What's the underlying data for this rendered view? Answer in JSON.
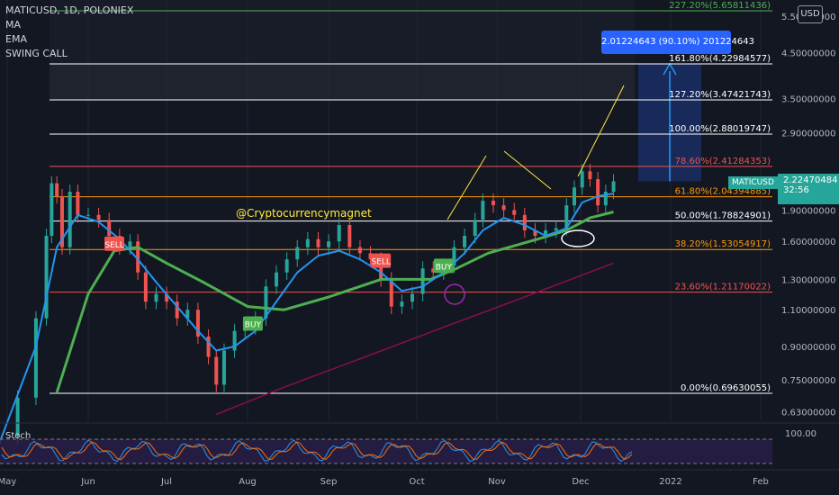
{
  "header": {
    "symbol_line": "MATICUSD, 1D, POLONIEX",
    "indicators": [
      "MA",
      "EMA",
      "SWING CALL"
    ]
  },
  "stoch_label": "Stoch",
  "currency_button": "USD",
  "watermark": "@Cryptocurrencymagnet",
  "measure_box": "2.01224643 (90.10%) 201224643",
  "price_tag": {
    "symbol": "MATICUSD",
    "price": "2.22470484",
    "countdown": "32:56"
  },
  "colors": {
    "background": "#131722",
    "up": "#26a69a",
    "down": "#ef5350",
    "blue_ema": "#2196f3",
    "measure": "#2962ff"
  },
  "chart_data": {
    "type": "line",
    "x_ticks": [
      "May",
      "Jun",
      "Jul",
      "Aug",
      "Sep",
      "Oct",
      "Nov",
      "Dec",
      "2022",
      "Feb"
    ],
    "y_ticks": [
      "5.50000000",
      "4.50000000",
      "3.50000000",
      "2.90000000",
      "1.90000000",
      "1.60000000",
      "1.30000000",
      "1.10000000",
      "0.90000000",
      "0.75000000",
      "0.63000000"
    ],
    "y_tick_values": [
      5.5,
      4.5,
      3.5,
      2.9,
      1.9,
      1.6,
      1.3,
      1.1,
      0.9,
      0.75,
      0.63
    ],
    "log_scale": true,
    "fib_levels": [
      {
        "label": "227.20%(5.65811436)",
        "value": 5.65811436,
        "color": "#4caf50"
      },
      {
        "label": "161.80%(4.22984577)",
        "value": 4.22984577,
        "color": "#ffffff"
      },
      {
        "label": "127.20%(3.47421743)",
        "value": 3.47421743,
        "color": "#ffffff"
      },
      {
        "label": "100.00%(2.88019747)",
        "value": 2.88019747,
        "color": "#ffffff"
      },
      {
        "label": "78.60%(2.41284353)",
        "value": 2.41284353,
        "color": "#ef5350"
      },
      {
        "label": "61.80%(2.04394885)",
        "value": 2.04394885,
        "color": "#ff9800"
      },
      {
        "label": "50.00%(1.78824901)",
        "value": 1.78824901,
        "color": "#ffffff"
      },
      {
        "label": "38.20%(1.53054917)",
        "value": 1.53054917,
        "color": "#ff9800"
      },
      {
        "label": "23.60%(1.21170022)",
        "value": 1.21170022,
        "color": "#ef5350"
      },
      {
        "label": "0.00%(0.69630055)",
        "value": 0.69630055,
        "color": "#ffffff"
      }
    ],
    "signals": [
      {
        "label": "SELL",
        "type": "sell",
        "date": "2021-06-11",
        "price": 1.58
      },
      {
        "label": "BUY",
        "type": "buy",
        "date": "2021-08-03",
        "price": 1.02
      },
      {
        "label": "SELL",
        "type": "sell",
        "date": "2021-09-21",
        "price": 1.44
      },
      {
        "label": "BUY",
        "type": "buy",
        "date": "2021-10-15",
        "price": 1.4
      }
    ],
    "stoch_level": "100.00",
    "close_series": [
      [
        "2021-04-28",
        0.55
      ],
      [
        "2021-05-05",
        0.68
      ],
      [
        "2021-05-12",
        1.05
      ],
      [
        "2021-05-16",
        1.65
      ],
      [
        "2021-05-18",
        2.2
      ],
      [
        "2021-05-20",
        2.05
      ],
      [
        "2021-05-22",
        1.55
      ],
      [
        "2021-05-25",
        2.1
      ],
      [
        "2021-05-28",
        1.85
      ],
      [
        "2021-06-01",
        1.85
      ],
      [
        "2021-06-05",
        1.8
      ],
      [
        "2021-06-09",
        1.65
      ],
      [
        "2021-06-13",
        1.55
      ],
      [
        "2021-06-17",
        1.6
      ],
      [
        "2021-06-20",
        1.35
      ],
      [
        "2021-06-23",
        1.15
      ],
      [
        "2021-06-27",
        1.2
      ],
      [
        "2021-07-01",
        1.15
      ],
      [
        "2021-07-05",
        1.05
      ],
      [
        "2021-07-09",
        1.1
      ],
      [
        "2021-07-13",
        0.95
      ],
      [
        "2021-07-17",
        0.85
      ],
      [
        "2021-07-20",
        0.73
      ],
      [
        "2021-07-23",
        0.88
      ],
      [
        "2021-07-27",
        0.98
      ],
      [
        "2021-07-31",
        1.0
      ],
      [
        "2021-08-04",
        1.05
      ],
      [
        "2021-08-08",
        1.25
      ],
      [
        "2021-08-12",
        1.35
      ],
      [
        "2021-08-16",
        1.45
      ],
      [
        "2021-08-20",
        1.55
      ],
      [
        "2021-08-24",
        1.62
      ],
      [
        "2021-08-28",
        1.55
      ],
      [
        "2021-09-01",
        1.6
      ],
      [
        "2021-09-05",
        1.75
      ],
      [
        "2021-09-09",
        1.55
      ],
      [
        "2021-09-13",
        1.5
      ],
      [
        "2021-09-17",
        1.45
      ],
      [
        "2021-09-21",
        1.3
      ],
      [
        "2021-09-25",
        1.12
      ],
      [
        "2021-09-29",
        1.15
      ],
      [
        "2021-10-03",
        1.2
      ],
      [
        "2021-10-07",
        1.38
      ],
      [
        "2021-10-11",
        1.35
      ],
      [
        "2021-10-15",
        1.4
      ],
      [
        "2021-10-19",
        1.55
      ],
      [
        "2021-10-23",
        1.65
      ],
      [
        "2021-10-27",
        1.8
      ],
      [
        "2021-10-30",
        2.0
      ],
      [
        "2021-11-03",
        1.95
      ],
      [
        "2021-11-07",
        1.9
      ],
      [
        "2021-11-11",
        1.85
      ],
      [
        "2021-11-15",
        1.7
      ],
      [
        "2021-11-19",
        1.65
      ],
      [
        "2021-11-23",
        1.7
      ],
      [
        "2021-11-27",
        1.72
      ],
      [
        "2021-12-01",
        1.95
      ],
      [
        "2021-12-04",
        2.15
      ],
      [
        "2021-12-07",
        2.35
      ],
      [
        "2021-12-10",
        2.25
      ],
      [
        "2021-12-13",
        1.95
      ],
      [
        "2021-12-16",
        2.1
      ],
      [
        "2021-12-19",
        2.2247
      ]
    ],
    "ema_series": [
      [
        "2021-04-28",
        0.53
      ],
      [
        "2021-05-12",
        0.9
      ],
      [
        "2021-05-20",
        1.55
      ],
      [
        "2021-05-28",
        1.85
      ],
      [
        "2021-06-05",
        1.78
      ],
      [
        "2021-06-13",
        1.62
      ],
      [
        "2021-06-20",
        1.45
      ],
      [
        "2021-06-27",
        1.28
      ],
      [
        "2021-07-05",
        1.12
      ],
      [
        "2021-07-13",
        0.98
      ],
      [
        "2021-07-20",
        0.88
      ],
      [
        "2021-07-27",
        0.9
      ],
      [
        "2021-08-04",
        0.98
      ],
      [
        "2021-08-12",
        1.15
      ],
      [
        "2021-08-20",
        1.35
      ],
      [
        "2021-08-28",
        1.48
      ],
      [
        "2021-09-05",
        1.52
      ],
      [
        "2021-09-13",
        1.45
      ],
      [
        "2021-09-21",
        1.35
      ],
      [
        "2021-09-29",
        1.22
      ],
      [
        "2021-10-07",
        1.25
      ],
      [
        "2021-10-15",
        1.35
      ],
      [
        "2021-10-23",
        1.5
      ],
      [
        "2021-10-30",
        1.7
      ],
      [
        "2021-11-07",
        1.82
      ],
      [
        "2021-11-15",
        1.75
      ],
      [
        "2021-11-23",
        1.65
      ],
      [
        "2021-12-01",
        1.72
      ],
      [
        "2021-12-07",
        1.98
      ],
      [
        "2021-12-13",
        2.05
      ],
      [
        "2021-12-19",
        2.08
      ]
    ],
    "ma_series": [
      [
        "2021-05-20",
        0.7
      ],
      [
        "2021-06-01",
        1.2
      ],
      [
        "2021-06-11",
        1.52
      ],
      [
        "2021-06-20",
        1.55
      ],
      [
        "2021-07-01",
        1.42
      ],
      [
        "2021-07-15",
        1.28
      ],
      [
        "2021-08-01",
        1.12
      ],
      [
        "2021-08-15",
        1.1
      ],
      [
        "2021-09-01",
        1.18
      ],
      [
        "2021-09-21",
        1.3
      ],
      [
        "2021-10-10",
        1.3
      ],
      [
        "2021-10-20",
        1.38
      ],
      [
        "2021-11-01",
        1.5
      ],
      [
        "2021-11-20",
        1.62
      ],
      [
        "2021-12-01",
        1.7
      ],
      [
        "2021-12-10",
        1.82
      ],
      [
        "2021-12-19",
        1.88
      ]
    ],
    "slow_ma_series": [
      [
        "2021-07-20",
        0.62
      ],
      [
        "2021-08-15",
        0.72
      ],
      [
        "2021-09-15",
        0.85
      ],
      [
        "2021-10-15",
        1.0
      ],
      [
        "2021-11-15",
        1.18
      ],
      [
        "2021-12-19",
        1.42
      ]
    ]
  }
}
